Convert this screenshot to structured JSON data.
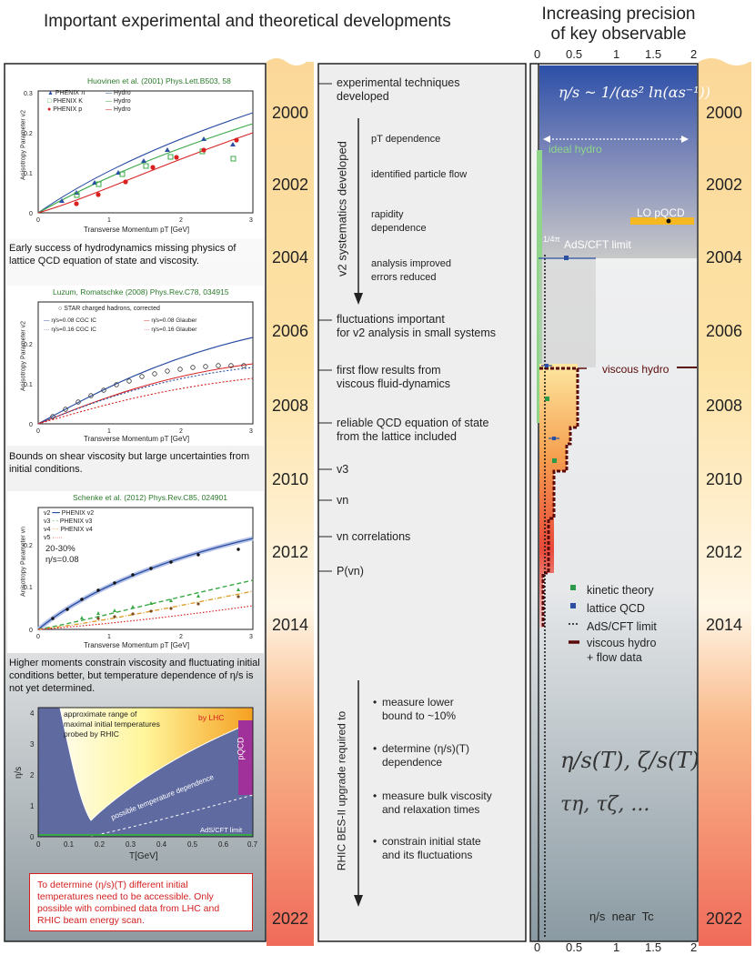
{
  "header": {
    "left_title": "Important experimental and theoretical developments",
    "right_title_line1": "Increasing precision",
    "right_title_line2": "of key observable"
  },
  "years": [
    "2000",
    "2002",
    "2004",
    "2006",
    "2008",
    "2010",
    "2012",
    "2014",
    "2022"
  ],
  "top_axis": {
    "ticks": [
      "0",
      "0.5",
      "1",
      "1.5",
      "2"
    ]
  },
  "bottom_axis": {
    "ticks": [
      "0",
      "0.5",
      "1",
      "1.5",
      "2"
    ]
  },
  "timeline": {
    "items": [
      {
        "text": "experimental techniques\ndeveloped"
      },
      {
        "text": "fluctuations important\nfor v2 analysis in small systems"
      },
      {
        "text": "first flow results from\nviscous fluid-dynamics"
      },
      {
        "text": "reliable QCD equation of state\nfrom the lattice included"
      },
      {
        "text": "v3"
      },
      {
        "text": "vn"
      },
      {
        "text": "vn correlations"
      },
      {
        "text": "P(vn)"
      }
    ],
    "v2_label": "v2 systematics developed",
    "v2_subitems": [
      "pT dependence",
      "identified particle flow",
      "rapidity\ndependence",
      "analysis improved\nerrors reduced"
    ],
    "bes_label": "RHIC BES-II upgrade required to",
    "bes_items": [
      "measure lower\nbound to ~10%",
      "determine (η/s)(T)\ndependence",
      "measure bulk viscosity\nand relaxation times",
      "constrain initial state\nand its fluctuations"
    ]
  },
  "left_panels": {
    "p1": {
      "ref": "Huovinen et al. (2001) Phys.Lett.B503, 58",
      "ylabel": "Anisotropy Parameter v2",
      "xlabel": "Transverse Momentum pT [GeV]",
      "legend": [
        "PHENIX π",
        "PHENIX K",
        "PHENIX p",
        "Hydro",
        "Hydro",
        "Hydro"
      ],
      "caption": "Early success of hydrodynamics missing physics of lattice QCD equation of state and viscosity."
    },
    "p2": {
      "ref": "Luzum, Romatschke (2008) Phys.Rev.C78, 034915",
      "ylabel": "Anisotropy Parameter v2",
      "xlabel": "Transverse Momentum pT [GeV]",
      "legend": [
        "STAR charged hadrons, corrected",
        "η/s=0.08 CGC IC",
        "η/s=0.08 Glauber",
        "η/s=0.16 CGC IC",
        "η/s=0.16 Glauber"
      ],
      "caption": "Bounds on shear viscosity but large uncertainties from initial conditions."
    },
    "p3": {
      "ref": "Schenke et al. (2012) Phys.Rev.C85, 024901",
      "ylabel": "Anisotropy Parameter vn",
      "xlabel": "Transverse Momentum pT [GeV]",
      "legend": [
        "v2",
        "PHENIX v2",
        "v3",
        "PHENIX v3",
        "v4",
        "PHENIX v4",
        "v5"
      ],
      "note1": "20-30%",
      "note2": "η/s=0.08",
      "caption": "Higher moments constrain viscosity and fluctuating initial conditions better, but temperature dependence of η/s is not yet determined."
    },
    "p4": {
      "text1": "approximate range of",
      "text2": "maximal initial temperatures",
      "text3": "probed by RHIC",
      "by_lhc": "by LHC",
      "pqcd": "pQCD",
      "possible": "possible temperature dependence",
      "ads": "AdS/CFT limit",
      "ylabel": "η/s",
      "xlabel": "T[GeV]",
      "xticks": [
        "0",
        "0.1",
        "0.2",
        "0.3",
        "0.4",
        "0.5",
        "0.6",
        "0.7"
      ],
      "yticks": [
        "0",
        "1",
        "2",
        "3",
        "4"
      ],
      "box_text": "To determine (η/s)(T) different initial temperatures need to be accessible. Only possible with combined data from LHC and RHIC beam energy scan."
    }
  },
  "right_panel": {
    "formula_top": "η/s ~ 1/(αs² ln(αs⁻¹))",
    "ideal_hydro": "ideal hydro",
    "lo_pqcd": "LO pQCD",
    "ads_label": "AdS/CFT limit",
    "quarter_pi": "1/4π",
    "viscous_hydro": "viscous hydro",
    "legend": [
      "kinetic theory",
      "lattice QCD",
      "AdS/CFT limit",
      "viscous hydro\n+ flow data"
    ],
    "formula_bottom1": "η/s(T), ζ/s(T)",
    "formula_bottom2": "τη, τζ, ...",
    "bottom_text": "η/s  near  Tc"
  },
  "colors": {
    "accent_green": "#2a7a2a",
    "red_text": "#d42020",
    "blue_top": "#2b4fa3",
    "dark_red": "#5a0a0a"
  },
  "chart_data": {
    "type": "line",
    "title": "",
    "xlabel": "η/s near Tc",
    "x_range": [
      0,
      2
    ],
    "series": [
      {
        "name": "LO pQCD",
        "x": [
          1.7
        ],
        "y": [
          "2003"
        ]
      },
      {
        "name": "lattice QCD",
        "x": [
          0.35
        ],
        "y": [
          "2004"
        ]
      },
      {
        "name": "AdS/CFT limit",
        "x": [
          0.08
        ],
        "y": [
          "2000-2022"
        ]
      }
    ]
  }
}
